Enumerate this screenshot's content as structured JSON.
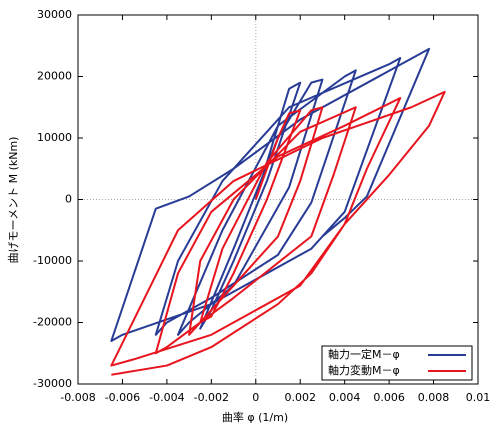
{
  "chart_data": {
    "type": "line",
    "xlabel": "曲率 φ (1/m)",
    "ylabel": "曲げモーメント M (kNm)",
    "xlim": [
      -0.008,
      0.01
    ],
    "xticks": [
      -0.008,
      -0.006,
      -0.004,
      -0.002,
      0,
      0.002,
      0.004,
      0.006,
      0.008,
      0.01
    ],
    "ylim": [
      -30000,
      30000
    ],
    "yticks": [
      -30000,
      -20000,
      -10000,
      0,
      10000,
      20000,
      30000
    ],
    "legend": "lower right",
    "series": [
      {
        "name": "軸力一定M－φ",
        "color": "#283c96",
        "x": [
          0,
          0.001,
          0.0015,
          0.002,
          0.0005,
          -0.001,
          -0.002,
          -0.0025,
          -0.001,
          0.001,
          0.0025,
          0.003,
          0.0015,
          -0.001,
          -0.003,
          -0.0035,
          -0.0015,
          0.001,
          0.004,
          0.0045,
          0.0025,
          0.001,
          -0.002,
          -0.004,
          -0.0045,
          -0.0035,
          -0.0015,
          0.0015,
          0.006,
          0.0065,
          0.004,
          0.0025,
          -0.002,
          -0.006,
          -0.0065,
          -0.0045,
          -0.003,
          -0.001,
          0.002,
          0.0078,
          0.005,
          0.004,
          0.003
        ],
        "values": [
          0,
          12000,
          18000,
          19000,
          3000,
          -10000,
          -18000,
          -21000,
          -8000,
          10000,
          19000,
          19500,
          2000,
          -14000,
          -20000,
          -22000,
          -5000,
          12000,
          20000,
          21000,
          -500,
          -9000,
          -16000,
          -20000,
          -22000,
          -10000,
          3000,
          15000,
          22000,
          23000,
          -2000,
          -8000,
          -17000,
          -22000,
          -23000,
          -1500,
          500,
          5000,
          13000,
          24500,
          500,
          -3000,
          -6000
        ]
      },
      {
        "name": "軸力変動M－φ",
        "color": "#e8141e",
        "x": [
          0,
          0.001,
          0.0015,
          0.002,
          0.0005,
          -0.001,
          -0.002,
          -0.0025,
          -0.0015,
          0.0005,
          0.0025,
          0.003,
          0.002,
          0.001,
          -0.002,
          -0.003,
          -0.0025,
          -0.001,
          0.002,
          0.0045,
          0.0035,
          0.0025,
          -0.001,
          -0.004,
          -0.0045,
          -0.0035,
          -0.002,
          0.001,
          0.004,
          0.0065,
          0.005,
          0.004,
          0.002,
          -0.002,
          -0.0055,
          -0.0065,
          -0.005,
          -0.0035,
          -0.001,
          0.003,
          0.007,
          0.0085,
          0.0078,
          0.006,
          0.004,
          0.0025,
          0.001,
          -0.002,
          -0.004,
          -0.0065
        ],
        "values": [
          0,
          10000,
          14000,
          14500,
          0,
          -12000,
          -19000,
          -20000,
          -8000,
          6000,
          14500,
          15000,
          3000,
          -6000,
          -18000,
          -22000,
          -10000,
          0,
          11000,
          15000,
          4000,
          -6000,
          -16000,
          -24000,
          -25000,
          -12000,
          -2000,
          7000,
          12000,
          16500,
          5000,
          -4000,
          -14000,
          -22000,
          -26000,
          -27000,
          -16000,
          -5000,
          3000,
          10000,
          15000,
          17500,
          12000,
          4000,
          -4000,
          -12000,
          -17000,
          -24000,
          -27000,
          -28500
        ]
      }
    ]
  }
}
